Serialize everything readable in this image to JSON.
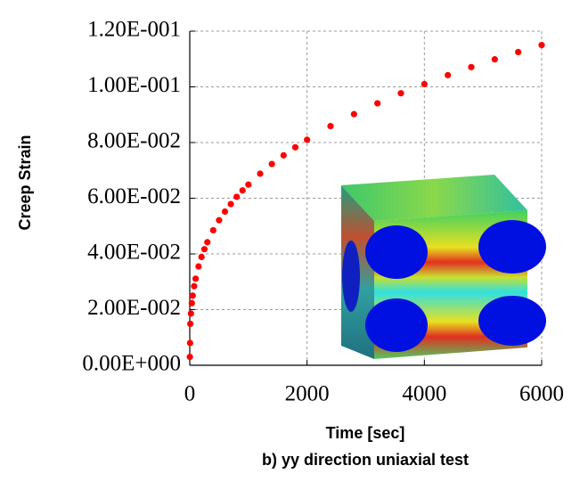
{
  "chart_data": {
    "type": "scatter",
    "title": "b) yy direction uniaxial test",
    "x_label": "Time [sec]",
    "y_label": "Creep Strain",
    "color": "#ff0000",
    "grid": true,
    "xlim": [
      0,
      6000
    ],
    "ylim": [
      0,
      0.12
    ],
    "xticks": [
      0,
      2000,
      4000,
      6000
    ],
    "yticks": [
      {
        "value": 0,
        "label": "0.00E+000"
      },
      {
        "value": 0.02,
        "label": "2.00E-002"
      },
      {
        "value": 0.04,
        "label": "4.00E-002"
      },
      {
        "value": 0.06,
        "label": "6.00E-002"
      },
      {
        "value": 0.08,
        "label": "8.00E-002"
      },
      {
        "value": 0.1,
        "label": "1.00E-001"
      },
      {
        "value": 0.12,
        "label": "1.20E-001"
      }
    ],
    "x": [
      2,
      5,
      10,
      20,
      35,
      50,
      75,
      100,
      150,
      200,
      250,
      300,
      400,
      500,
      600,
      700,
      800,
      900,
      1000,
      1200,
      1400,
      1600,
      1800,
      2000,
      2400,
      2800,
      3200,
      3600,
      4000,
      4400,
      4800,
      5200,
      5600,
      6000
    ],
    "values": [
      0.003,
      0.008,
      0.0149,
      0.0186,
      0.0223,
      0.025,
      0.0284,
      0.0311,
      0.0355,
      0.0389,
      0.0417,
      0.0442,
      0.0485,
      0.0521,
      0.0552,
      0.0579,
      0.0605,
      0.0628,
      0.0649,
      0.0688,
      0.0723,
      0.0754,
      0.0783,
      0.081,
      0.0859,
      0.0902,
      0.0941,
      0.0977,
      0.101,
      0.1042,
      0.1071,
      0.1099,
      0.1125,
      0.115
    ]
  }
}
